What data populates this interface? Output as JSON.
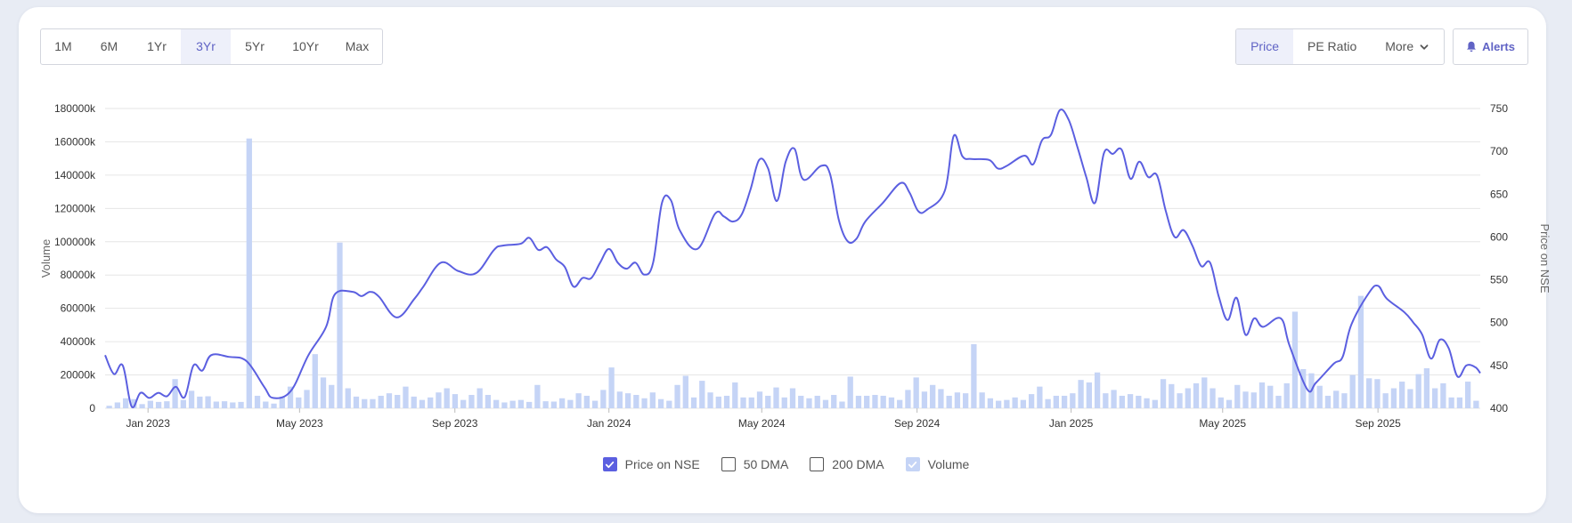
{
  "range_buttons": [
    {
      "label": "1M",
      "active": false
    },
    {
      "label": "6M",
      "active": false
    },
    {
      "label": "1Yr",
      "active": false
    },
    {
      "label": "3Yr",
      "active": true
    },
    {
      "label": "5Yr",
      "active": false
    },
    {
      "label": "10Yr",
      "active": false
    },
    {
      "label": "Max",
      "active": false
    }
  ],
  "metric_buttons": {
    "price": "Price",
    "pe_ratio": "PE Ratio",
    "more": "More"
  },
  "alerts_label": "Alerts",
  "legend": [
    {
      "label": "Price on NSE",
      "checked": true,
      "style": "line"
    },
    {
      "label": "50 DMA",
      "checked": false,
      "style": "none"
    },
    {
      "label": "200 DMA",
      "checked": false,
      "style": "none"
    },
    {
      "label": "Volume",
      "checked": true,
      "style": "bar"
    }
  ],
  "colors": {
    "price_line": "#5b5fe0",
    "volume_bar": "#c5d4f6",
    "accent": "#6063c5",
    "grid": "#e6e6e6"
  },
  "icons": {
    "alerts": "bell-icon",
    "more": "chevron-down-icon",
    "checkbox": "check-icon"
  },
  "chart_data": {
    "type": "line",
    "title": "",
    "xlabel": "",
    "ylabel_left": "Volume",
    "ylabel_right": "Price on NSE",
    "x_ticks": [
      "Jan 2023",
      "May 2023",
      "Sep 2023",
      "Jan 2024",
      "May 2024",
      "Sep 2024",
      "Jan 2025",
      "May 2025",
      "Sep 2025"
    ],
    "y_left_ticks": [
      "0",
      "20000k",
      "40000k",
      "60000k",
      "80000k",
      "100000k",
      "120000k",
      "140000k",
      "160000k",
      "180000k"
    ],
    "y_right_ticks": [
      "400",
      "450",
      "500",
      "550",
      "600",
      "650",
      "700",
      "750"
    ],
    "y_left_range": [
      0,
      180000
    ],
    "y_right_range": [
      400,
      750
    ],
    "x_range": [
      "2022-11-28",
      "2025-11-21"
    ],
    "grid": true,
    "legend_position": "bottom",
    "series": [
      {
        "name": "Price on NSE",
        "axis": "right",
        "points": [
          [
            "2022-11-28",
            462
          ],
          [
            "2022-12-05",
            440
          ],
          [
            "2022-12-12",
            450
          ],
          [
            "2022-12-19",
            402
          ],
          [
            "2022-12-26",
            418
          ],
          [
            "2023-01-02",
            412
          ],
          [
            "2023-01-09",
            418
          ],
          [
            "2023-01-16",
            414
          ],
          [
            "2023-01-23",
            425
          ],
          [
            "2023-01-30",
            413
          ],
          [
            "2023-02-06",
            450
          ],
          [
            "2023-02-13",
            444
          ],
          [
            "2023-02-20",
            462
          ],
          [
            "2023-03-06",
            460
          ],
          [
            "2023-03-20",
            455
          ],
          [
            "2023-04-03",
            425
          ],
          [
            "2023-04-10",
            412
          ],
          [
            "2023-04-24",
            420
          ],
          [
            "2023-05-08",
            462
          ],
          [
            "2023-05-22",
            495
          ],
          [
            "2023-05-29",
            533
          ],
          [
            "2023-06-12",
            536
          ],
          [
            "2023-06-19",
            531
          ],
          [
            "2023-06-26",
            536
          ],
          [
            "2023-07-03",
            530
          ],
          [
            "2023-07-17",
            506
          ],
          [
            "2023-07-31",
            528
          ],
          [
            "2023-08-07",
            542
          ],
          [
            "2023-08-21",
            570
          ],
          [
            "2023-09-04",
            560
          ],
          [
            "2023-09-18",
            558
          ],
          [
            "2023-10-02",
            585
          ],
          [
            "2023-10-09",
            590
          ],
          [
            "2023-10-23",
            592
          ],
          [
            "2023-10-30",
            599
          ],
          [
            "2023-11-06",
            585
          ],
          [
            "2023-11-13",
            588
          ],
          [
            "2023-11-20",
            574
          ],
          [
            "2023-11-27",
            565
          ],
          [
            "2023-12-04",
            542
          ],
          [
            "2023-12-11",
            552
          ],
          [
            "2023-12-18",
            552
          ],
          [
            "2023-12-25",
            570
          ],
          [
            "2024-01-01",
            586
          ],
          [
            "2024-01-08",
            570
          ],
          [
            "2024-01-15",
            563
          ],
          [
            "2024-01-22",
            570
          ],
          [
            "2024-01-29",
            556
          ],
          [
            "2024-02-05",
            570
          ],
          [
            "2024-02-12",
            640
          ],
          [
            "2024-02-19",
            643
          ],
          [
            "2024-02-26",
            608
          ],
          [
            "2024-03-11",
            586
          ],
          [
            "2024-03-25",
            627
          ],
          [
            "2024-04-01",
            624
          ],
          [
            "2024-04-08",
            618
          ],
          [
            "2024-04-15",
            626
          ],
          [
            "2024-04-22",
            655
          ],
          [
            "2024-04-29",
            690
          ],
          [
            "2024-05-06",
            680
          ],
          [
            "2024-05-13",
            642
          ],
          [
            "2024-05-20",
            688
          ],
          [
            "2024-05-27",
            703
          ],
          [
            "2024-06-03",
            667
          ],
          [
            "2024-06-17",
            683
          ],
          [
            "2024-06-24",
            674
          ],
          [
            "2024-07-01",
            620
          ],
          [
            "2024-07-08",
            595
          ],
          [
            "2024-07-15",
            598
          ],
          [
            "2024-07-22",
            618
          ],
          [
            "2024-08-05",
            640
          ],
          [
            "2024-08-19",
            663
          ],
          [
            "2024-08-26",
            652
          ],
          [
            "2024-09-02",
            630
          ],
          [
            "2024-09-09",
            632
          ],
          [
            "2024-09-23",
            654
          ],
          [
            "2024-09-30",
            718
          ],
          [
            "2024-10-07",
            694
          ],
          [
            "2024-10-14",
            691
          ],
          [
            "2024-10-28",
            690
          ],
          [
            "2024-11-04",
            680
          ],
          [
            "2024-11-11",
            683
          ],
          [
            "2024-11-25",
            695
          ],
          [
            "2024-12-02",
            685
          ],
          [
            "2024-12-09",
            713
          ],
          [
            "2024-12-16",
            719
          ],
          [
            "2024-12-23",
            748
          ],
          [
            "2024-12-30",
            737
          ],
          [
            "2025-01-06",
            705
          ],
          [
            "2025-01-13",
            670
          ],
          [
            "2025-01-20",
            640
          ],
          [
            "2025-01-27",
            698
          ],
          [
            "2025-02-03",
            697
          ],
          [
            "2025-02-10",
            702
          ],
          [
            "2025-02-17",
            668
          ],
          [
            "2025-02-24",
            688
          ],
          [
            "2025-03-03",
            670
          ],
          [
            "2025-03-10",
            672
          ],
          [
            "2025-03-17",
            630
          ],
          [
            "2025-03-24",
            600
          ],
          [
            "2025-03-31",
            608
          ],
          [
            "2025-04-07",
            590
          ],
          [
            "2025-04-14",
            566
          ],
          [
            "2025-04-21",
            570
          ],
          [
            "2025-04-28",
            530
          ],
          [
            "2025-05-05",
            503
          ],
          [
            "2025-05-12",
            529
          ],
          [
            "2025-05-19",
            486
          ],
          [
            "2025-05-26",
            505
          ],
          [
            "2025-06-02",
            495
          ],
          [
            "2025-06-16",
            505
          ],
          [
            "2025-06-23",
            473
          ],
          [
            "2025-07-07",
            422
          ],
          [
            "2025-07-14",
            430
          ],
          [
            "2025-07-28",
            452
          ],
          [
            "2025-08-04",
            460
          ],
          [
            "2025-08-11",
            498
          ],
          [
            "2025-08-25",
            535
          ],
          [
            "2025-09-01",
            543
          ],
          [
            "2025-09-08",
            528
          ],
          [
            "2025-09-22",
            512
          ],
          [
            "2025-09-29",
            500
          ],
          [
            "2025-10-06",
            486
          ],
          [
            "2025-10-13",
            458
          ],
          [
            "2025-10-20",
            480
          ],
          [
            "2025-10-27",
            470
          ],
          [
            "2025-11-03",
            437
          ],
          [
            "2025-11-10",
            450
          ],
          [
            "2025-11-17",
            448
          ],
          [
            "2025-11-21",
            441
          ]
        ]
      },
      {
        "name": "Volume",
        "axis": "left",
        "unit": "k",
        "values": [
          1500,
          3500,
          6000,
          5500,
          2500,
          4500,
          3800,
          4200,
          17500,
          5000,
          10500,
          7000,
          7200,
          4000,
          4200,
          3500,
          3800,
          162000,
          7500,
          4000,
          2800,
          7000,
          13000,
          6500,
          11000,
          32500,
          18500,
          14000,
          99500,
          12000,
          7000,
          5500,
          5500,
          7500,
          9000,
          8000,
          13000,
          7000,
          5000,
          6500,
          9500,
          12000,
          8500,
          5000,
          8000,
          12000,
          8000,
          5000,
          3500,
          4500,
          5000,
          3800,
          14000,
          4200,
          4000,
          6000,
          5000,
          9000,
          7500,
          4500,
          11000,
          24500,
          10000,
          9000,
          8000,
          6000,
          9500,
          5500,
          4500,
          14000,
          19500,
          6500,
          16500,
          9500,
          7000,
          7500,
          15500,
          6500,
          6500,
          10000,
          7500,
          12500,
          6500,
          12000,
          7500,
          6000,
          7500,
          5000,
          8000,
          4000,
          19000,
          7500,
          7500,
          8000,
          7500,
          6500,
          5000,
          11000,
          18500,
          10000,
          14000,
          11500,
          7500,
          9500,
          9000,
          38500,
          9500,
          6000,
          4500,
          5000,
          6500,
          5000,
          8500,
          13000,
          5500,
          7500,
          7500,
          9000,
          17000,
          15500,
          21500,
          9000,
          11000,
          7500,
          8500,
          7500,
          6000,
          5000,
          17500,
          14500,
          9000,
          12000,
          15000,
          18500,
          12000,
          6500,
          5000,
          14000,
          10000,
          9500,
          15500,
          13500,
          7500,
          15000,
          58000,
          23500,
          21000,
          13500,
          7500,
          10500,
          9000,
          20000,
          67500,
          18000,
          17500,
          9000,
          12000,
          16000,
          11500,
          20500,
          24000,
          12000,
          15000,
          6500,
          6500,
          16000,
          4500
        ]
      }
    ]
  }
}
